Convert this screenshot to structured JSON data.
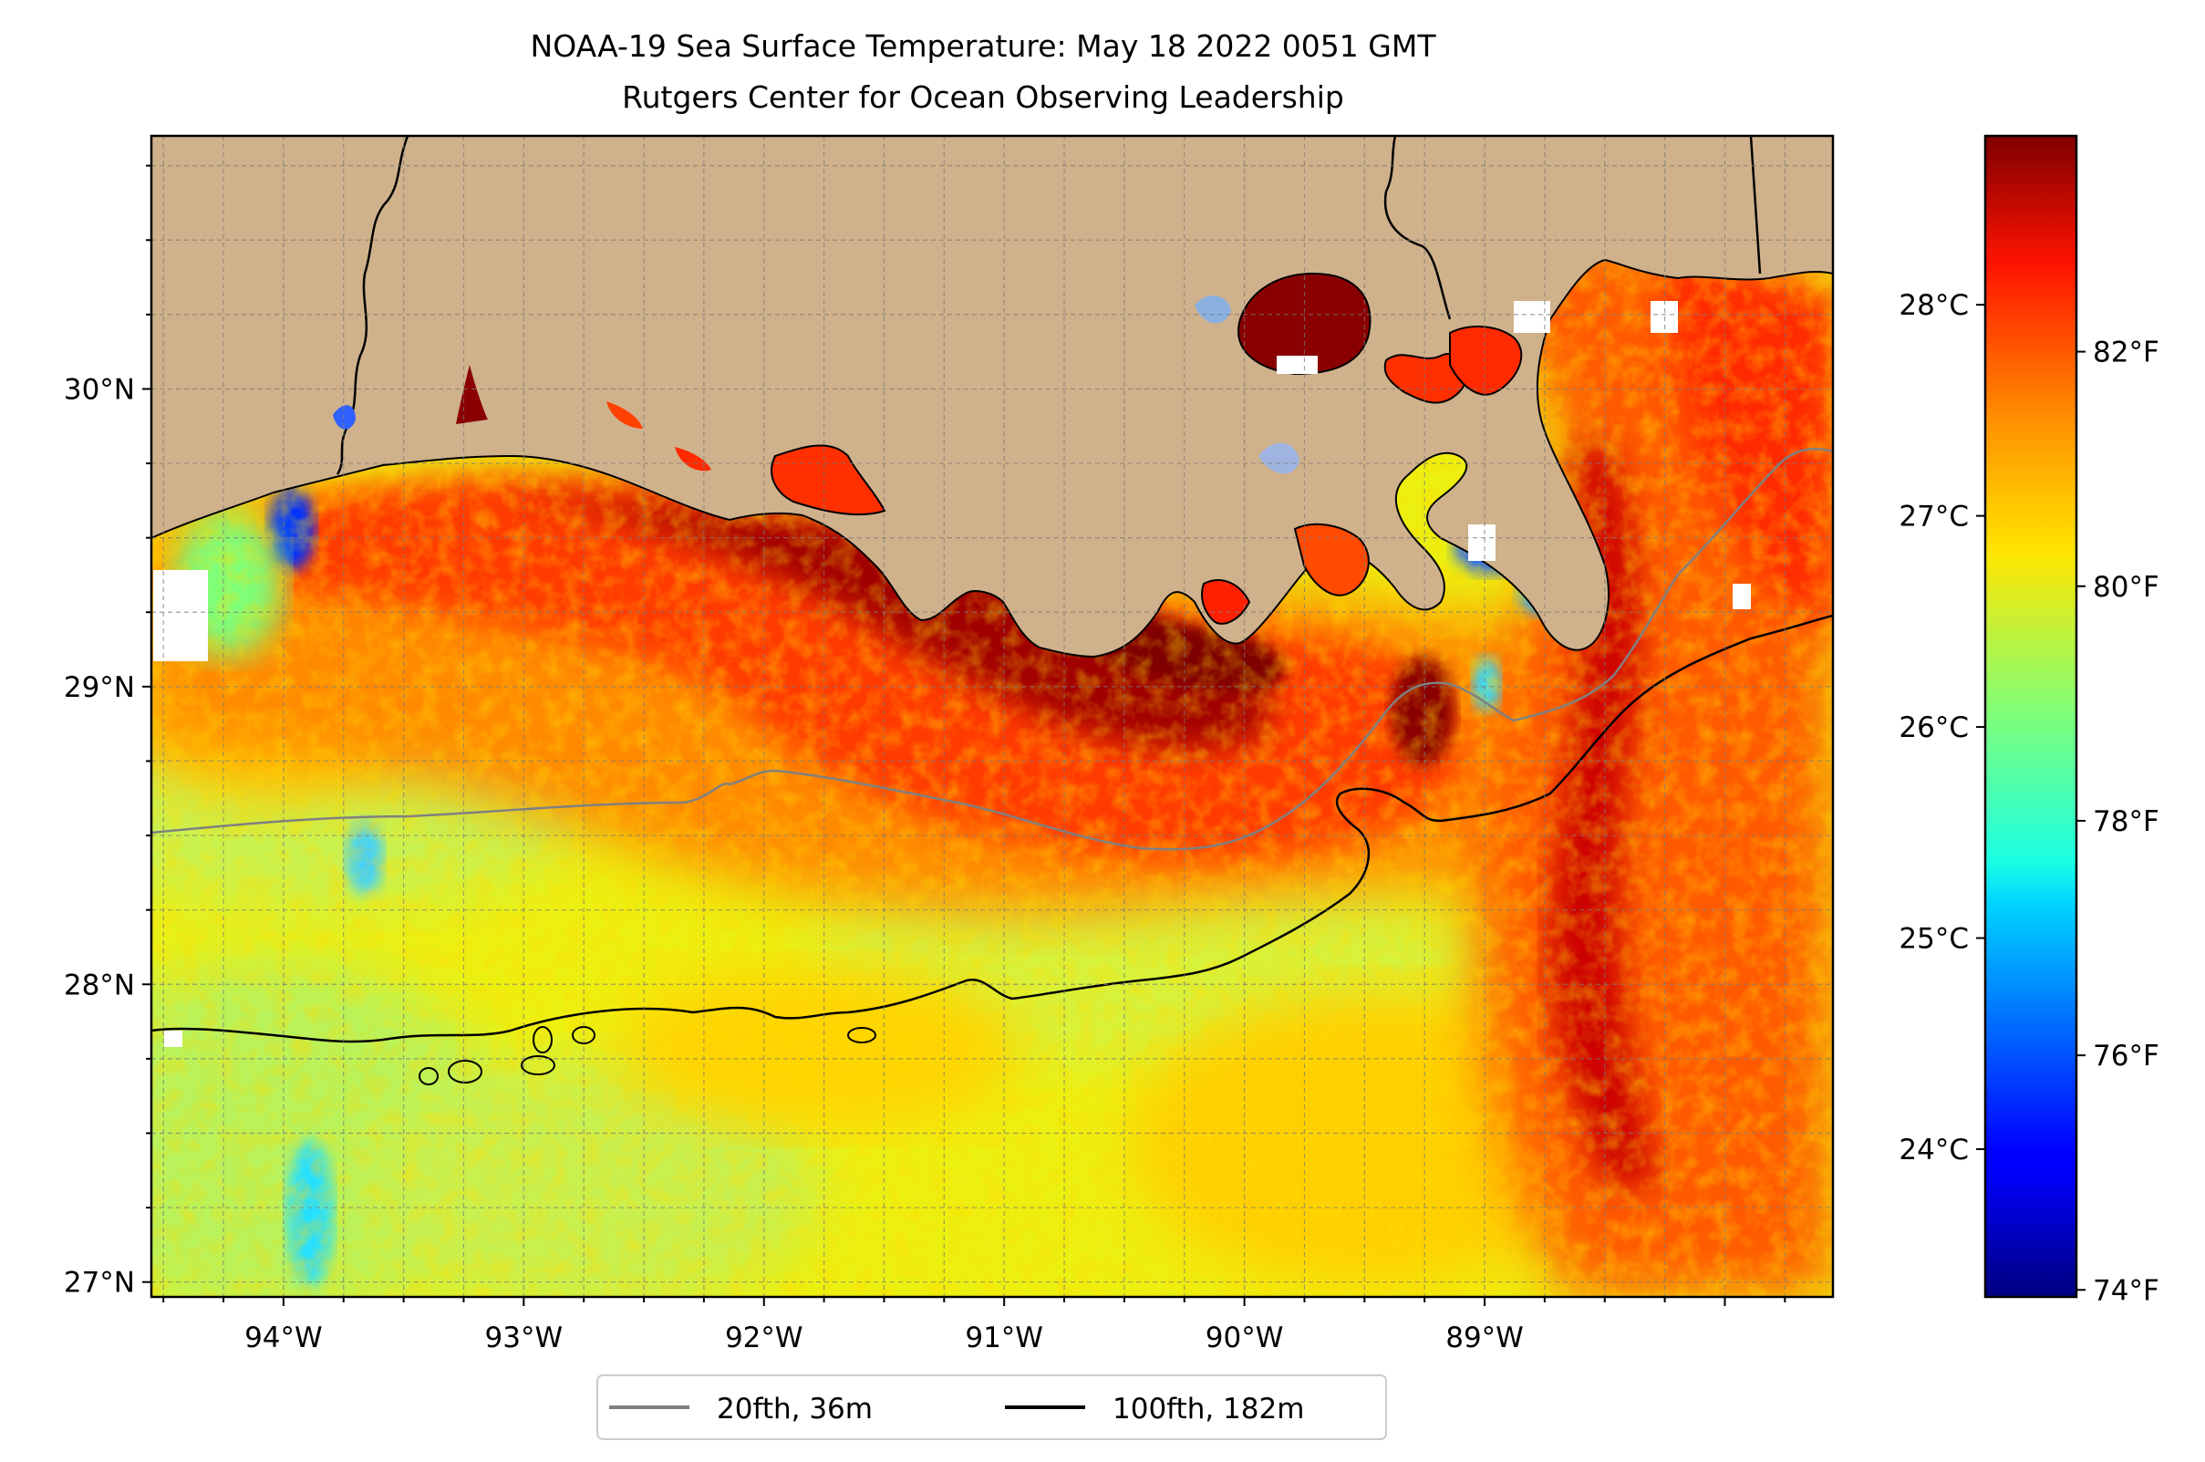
{
  "title": {
    "line1": "NOAA-19 Sea Surface Temperature: May 18 2022 0051 GMT",
    "line2": "Rutgers Center for Ocean Observing Leadership"
  },
  "map": {
    "lon_ticks": [
      {
        "value": -94,
        "label": "94°W"
      },
      {
        "value": -93,
        "label": "93°W"
      },
      {
        "value": -92,
        "label": "92°W"
      },
      {
        "value": -91,
        "label": "91°W"
      },
      {
        "value": -90,
        "label": "90°W"
      },
      {
        "value": -89,
        "label": "89°W"
      }
    ],
    "lat_ticks": [
      {
        "value": 30,
        "label": "30°N"
      },
      {
        "value": 29,
        "label": "29°N"
      },
      {
        "value": 28,
        "label": "28°N"
      },
      {
        "value": 27,
        "label": "27°N"
      }
    ],
    "lon_range": [
      -94.55,
      -87.55
    ],
    "lat_range": [
      26.95,
      30.85
    ],
    "gridlines": true,
    "land_color": "#cfb18b",
    "isobath_20_color": "#808080",
    "isobath_100_color": "#000000"
  },
  "legend": {
    "placement": "bottom-center",
    "items": [
      {
        "label": "20fth, 36m",
        "color": "#808080"
      },
      {
        "label": "100fth, 182m",
        "color": "#000000"
      }
    ]
  },
  "colorbar": {
    "colormap": "jet",
    "range_c": [
      23.3,
      28.8
    ],
    "celsius_ticks": [
      {
        "value": 28,
        "label": "28°C"
      },
      {
        "value": 27,
        "label": "27°C"
      },
      {
        "value": 26,
        "label": "26°C"
      },
      {
        "value": 25,
        "label": "25°C"
      },
      {
        "value": 24,
        "label": "24°C"
      }
    ],
    "fahrenheit_ticks": [
      {
        "value": 82,
        "label": "82°F"
      },
      {
        "value": 80,
        "label": "80°F"
      },
      {
        "value": 78,
        "label": "78°F"
      },
      {
        "value": 76,
        "label": "76°F"
      },
      {
        "value": 74,
        "label": "74°F"
      }
    ]
  }
}
